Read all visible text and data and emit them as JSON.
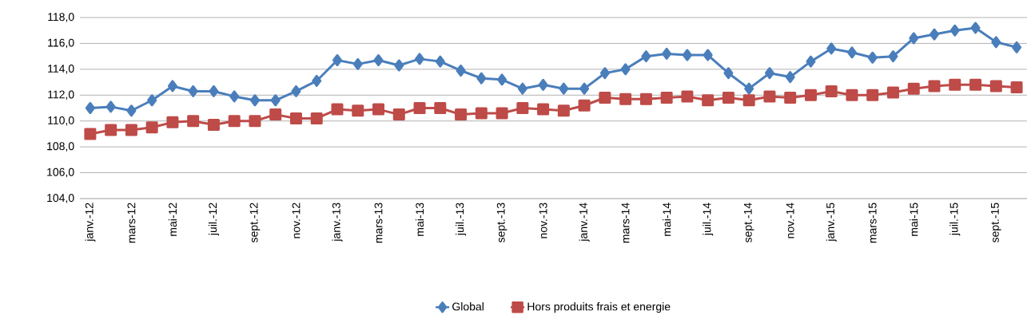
{
  "chart_data": {
    "type": "line",
    "categories": [
      "janv.-12",
      null,
      "mars-12",
      null,
      "mai-12",
      null,
      "juil.-12",
      null,
      "sept.-12",
      null,
      "nov.-12",
      null,
      "janv.-13",
      null,
      "mars-13",
      null,
      "mai-13",
      null,
      "juil.-13",
      null,
      "sept.-13",
      null,
      "nov.-13",
      null,
      "janv.-14",
      null,
      "mars-14",
      null,
      "mai-14",
      null,
      "juil.-14",
      null,
      "sept.-14",
      null,
      "nov.-14",
      null,
      "janv.-15",
      null,
      "mars-15",
      null,
      "mai-15",
      null,
      "juil.-15",
      null,
      "sept.-15",
      null
    ],
    "series": [
      {
        "name": "Global",
        "color": "#4a7ebb",
        "marker": "diamond",
        "values": [
          111.0,
          111.1,
          110.8,
          111.6,
          112.7,
          112.3,
          112.3,
          111.9,
          111.6,
          111.6,
          112.3,
          113.1,
          114.7,
          114.4,
          114.7,
          114.3,
          114.8,
          114.6,
          113.9,
          113.3,
          113.2,
          112.5,
          112.8,
          112.5,
          112.5,
          113.7,
          114.0,
          115.0,
          115.2,
          115.1,
          115.1,
          113.7,
          112.5,
          113.7,
          113.4,
          114.6,
          115.6,
          115.3,
          114.9,
          115.0,
          116.4,
          116.7,
          117.0,
          117.2,
          116.1,
          115.7
        ]
      },
      {
        "name": "Hors produits frais et energie",
        "color": "#be4b48",
        "marker": "square",
        "values": [
          109.0,
          109.3,
          109.3,
          109.5,
          109.9,
          110.0,
          109.7,
          110.0,
          110.0,
          110.5,
          110.2,
          110.2,
          110.9,
          110.8,
          110.9,
          110.5,
          111.0,
          111.0,
          110.5,
          110.6,
          110.6,
          111.0,
          110.9,
          110.8,
          111.2,
          111.8,
          111.7,
          111.7,
          111.8,
          111.9,
          111.6,
          111.8,
          111.6,
          111.9,
          111.8,
          112.0,
          112.3,
          112.0,
          112.0,
          112.2,
          112.5,
          112.7,
          112.8,
          112.8,
          112.7,
          112.6
        ]
      }
    ],
    "ylim": [
      104,
      118
    ],
    "yticks": [
      {
        "value": 104,
        "label": "104,0"
      },
      {
        "value": 106,
        "label": "106,0"
      },
      {
        "value": 108,
        "label": "108,0"
      },
      {
        "value": 110,
        "label": "110,0"
      },
      {
        "value": 112,
        "label": "112,0"
      },
      {
        "value": 114,
        "label": "114,0"
      },
      {
        "value": 116,
        "label": "116,0"
      },
      {
        "value": 118,
        "label": "118,0"
      }
    ],
    "grid": "y",
    "legend": "bottom",
    "line_style": "solid"
  }
}
